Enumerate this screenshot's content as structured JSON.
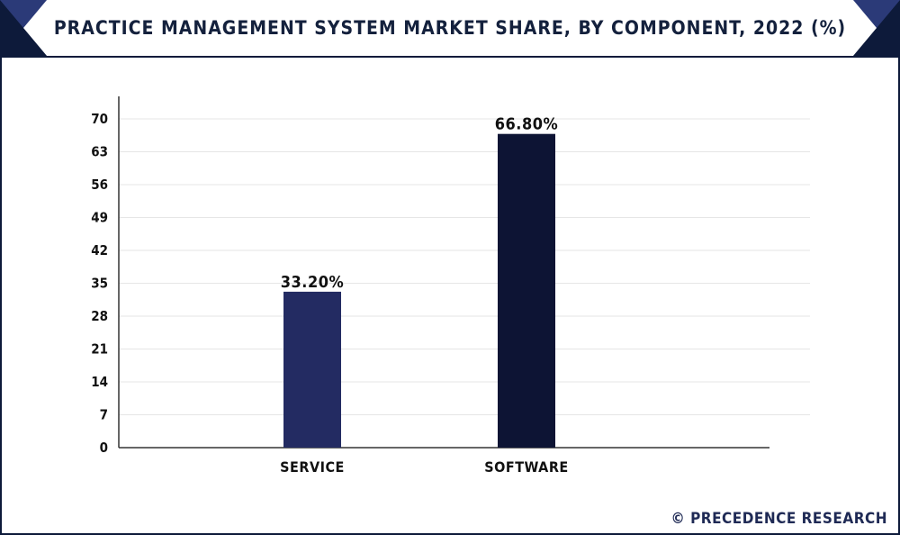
{
  "title": "PRACTICE MANAGEMENT SYSTEM MARKET SHARE, BY COMPONENT, 2022 (%)",
  "footer": "© PRECEDENCE RESEARCH",
  "colors": {
    "frame": "#0d1a3a",
    "corner_accent": "#2b3a78",
    "corner_dark": "#0d1a3a",
    "grid": "#e6e6e6",
    "axis": "#333333"
  },
  "chart_data": {
    "type": "bar",
    "title": "PRACTICE MANAGEMENT SYSTEM MARKET SHARE, BY COMPONENT, 2022 (%)",
    "xlabel": "",
    "ylabel": "",
    "categories": [
      "SERVICE",
      "SOFTWARE"
    ],
    "values": [
      33.2,
      66.8
    ],
    "data_labels": [
      "33.20%",
      "66.80%"
    ],
    "bar_colors": [
      "#232b62",
      "#0d1434"
    ],
    "ylim": [
      0,
      70
    ],
    "yticks": [
      0,
      7,
      14,
      21,
      28,
      35,
      42,
      49,
      56,
      63,
      70
    ],
    "grid": true,
    "legend": "none"
  }
}
